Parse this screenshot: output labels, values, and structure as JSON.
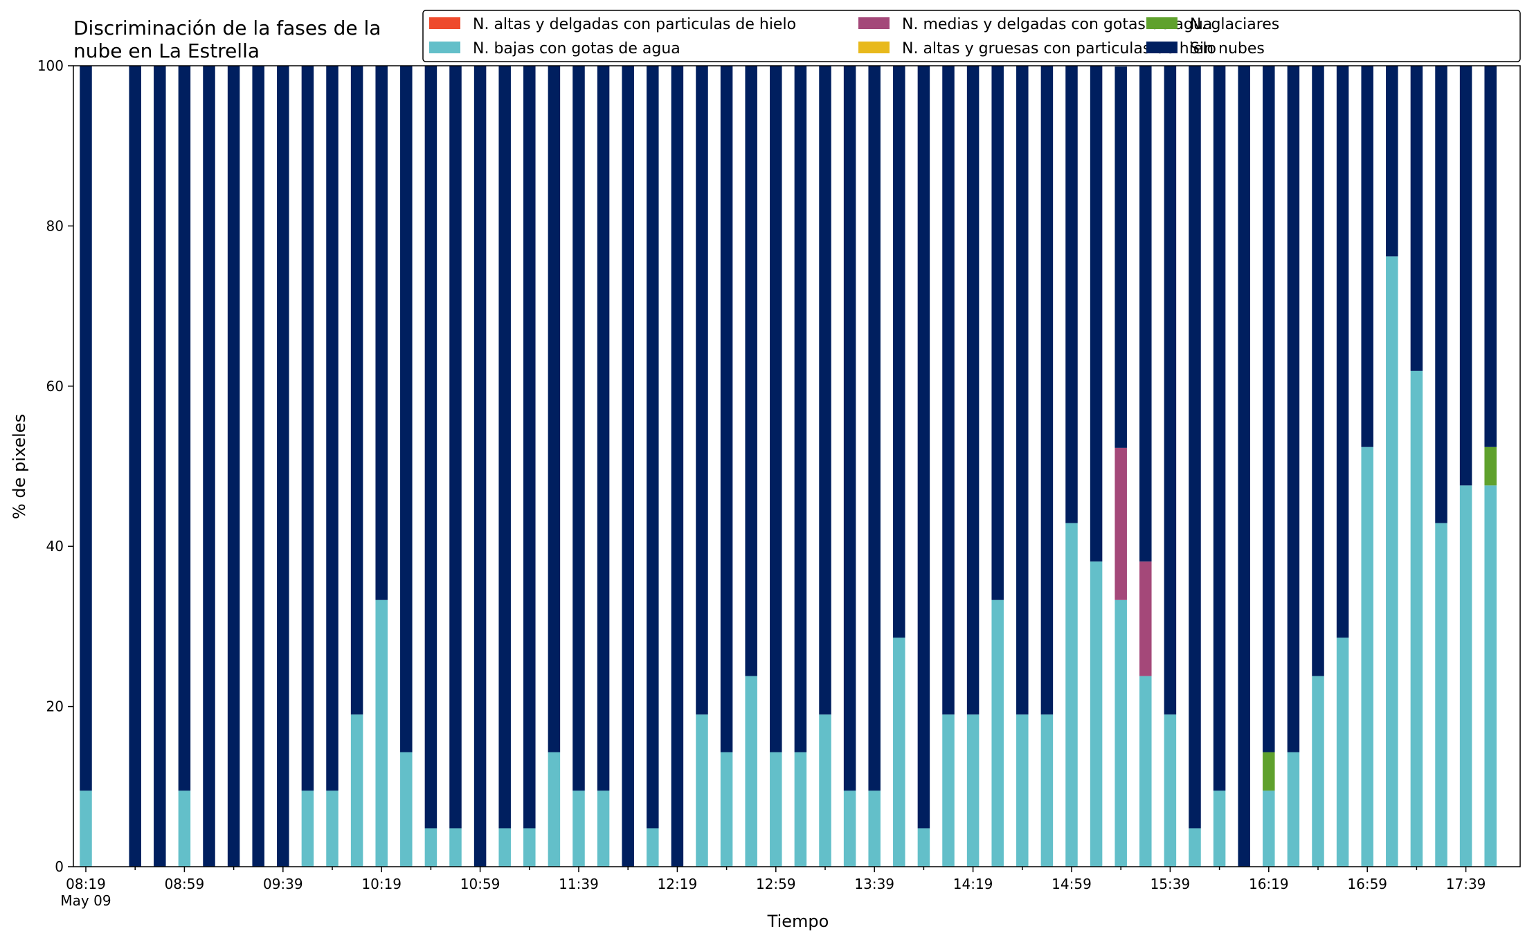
{
  "chart_data": {
    "type": "bar",
    "stacked": true,
    "title": "Discriminación de la fases de la\nnube en La Estrella",
    "xlabel": "Tiempo",
    "ylabel": "% de pixeles",
    "ylim": [
      0,
      100
    ],
    "yticks": [
      0,
      20,
      40,
      60,
      80,
      100
    ],
    "grid": false,
    "legend_position": "top-right",
    "x_date_label": "May 09",
    "xtick_labels": [
      "08:19",
      "08:59",
      "09:39",
      "10:19",
      "10:59",
      "11:39",
      "12:19",
      "12:59",
      "13:39",
      "14:19",
      "14:59",
      "15:39",
      "16:19",
      "16:59",
      "17:39"
    ],
    "categories": [
      "08:19",
      "08:29",
      "08:39",
      "08:49",
      "08:59",
      "09:09",
      "09:19",
      "09:29",
      "09:39",
      "09:49",
      "09:59",
      "10:09",
      "10:19",
      "10:29",
      "10:39",
      "10:49",
      "10:59",
      "11:09",
      "11:19",
      "11:29",
      "11:39",
      "11:49",
      "11:59",
      "12:09",
      "12:19",
      "12:29",
      "12:39",
      "12:49",
      "12:59",
      "13:09",
      "13:19",
      "13:29",
      "13:39",
      "13:49",
      "13:59",
      "14:09",
      "14:19",
      "14:29",
      "14:39",
      "14:49",
      "14:59",
      "15:09",
      "15:19",
      "15:29",
      "15:39",
      "15:49",
      "15:59",
      "16:09",
      "16:19",
      "16:29",
      "16:39",
      "16:49",
      "16:59",
      "17:09",
      "17:19",
      "17:29",
      "17:39",
      "17:49"
    ],
    "present": [
      1,
      0,
      1,
      1,
      1,
      1,
      1,
      1,
      1,
      1,
      1,
      1,
      1,
      1,
      1,
      1,
      1,
      1,
      1,
      1,
      1,
      1,
      1,
      1,
      1,
      1,
      1,
      1,
      1,
      1,
      1,
      1,
      1,
      1,
      1,
      1,
      1,
      1,
      1,
      1,
      1,
      1,
      1,
      1,
      1,
      1,
      1,
      1,
      1,
      1,
      1,
      1,
      1,
      1,
      1,
      1,
      1,
      1
    ],
    "series": [
      {
        "name": "N. altas y delgadas con particulas de hielo",
        "color": "#ee4a2c",
        "values": [
          0,
          0,
          0,
          0,
          0,
          0,
          0,
          0,
          0,
          0,
          0,
          0,
          0,
          0,
          0,
          0,
          0,
          0,
          0,
          0,
          0,
          0,
          0,
          0,
          0,
          0,
          0,
          0,
          0,
          0,
          0,
          0,
          0,
          0,
          0,
          0,
          0,
          0,
          0,
          0,
          0,
          0,
          0,
          0,
          0,
          0,
          0,
          0,
          0,
          0,
          0,
          0,
          0,
          0,
          0,
          0,
          0,
          0
        ]
      },
      {
        "name": "N. altas y gruesas con particulas de hielo",
        "color": "#e8b91c",
        "values": [
          0,
          0,
          0,
          0,
          0,
          0,
          0,
          0,
          0,
          0,
          0,
          0,
          0,
          0,
          0,
          0,
          0,
          0,
          0,
          0,
          0,
          0,
          0,
          0,
          0,
          0,
          0,
          0,
          0,
          0,
          0,
          0,
          0,
          0,
          0,
          0,
          0,
          0,
          0,
          0,
          0,
          0,
          0,
          0,
          0,
          0,
          0,
          0,
          0,
          0,
          0,
          0,
          0,
          0,
          0,
          0,
          0,
          0
        ]
      },
      {
        "name": "N. bajas con gotas de agua",
        "color": "#63bfc9",
        "values": [
          9.5,
          0,
          0,
          0,
          9.5,
          0,
          0,
          0,
          0,
          9.5,
          9.5,
          19,
          33.3,
          14.3,
          4.8,
          4.8,
          0,
          4.8,
          4.8,
          14.3,
          9.5,
          9.5,
          0,
          4.8,
          0,
          19,
          14.3,
          23.8,
          14.3,
          14.3,
          19,
          9.5,
          9.5,
          28.6,
          4.8,
          19,
          19,
          33.3,
          19,
          19,
          42.9,
          38.1,
          33.3,
          23.8,
          19,
          4.8,
          9.5,
          0,
          9.5,
          14.3,
          23.8,
          28.6,
          52.4,
          76.2,
          61.9,
          42.9,
          47.6,
          47.6
        ]
      },
      {
        "name": "N. glaciares",
        "color": "#5fa12d",
        "values": [
          0,
          0,
          0,
          0,
          0,
          0,
          0,
          0,
          0,
          0,
          0,
          0,
          0,
          0,
          0,
          0,
          0,
          0,
          0,
          0,
          0,
          0,
          0,
          0,
          0,
          0,
          0,
          0,
          0,
          0,
          0,
          0,
          0,
          0,
          0,
          0,
          0,
          0,
          0,
          0,
          0,
          0,
          0,
          0,
          0,
          0,
          0,
          0,
          4.8,
          0,
          0,
          0,
          0,
          0,
          0,
          0,
          0,
          4.8
        ]
      },
      {
        "name": "N. medias y delgadas con gotas de agua",
        "color": "#a44879",
        "values": [
          0,
          0,
          0,
          0,
          0,
          0,
          0,
          0,
          0,
          0,
          0,
          0,
          0,
          0,
          0,
          0,
          0,
          0,
          0,
          0,
          0,
          0,
          0,
          0,
          0,
          0,
          0,
          0,
          0,
          0,
          0,
          0,
          0,
          0,
          0,
          0,
          0,
          0,
          0,
          0,
          0,
          0,
          19,
          14.3,
          0,
          0,
          0,
          0,
          0,
          0,
          0,
          0,
          0,
          0,
          0,
          0,
          0,
          0
        ]
      },
      {
        "name": "Sin nubes",
        "color": "#001f5f",
        "values": [
          90.5,
          0,
          100,
          100,
          90.5,
          100,
          100,
          100,
          100,
          90.5,
          90.5,
          81,
          66.7,
          85.7,
          95.2,
          95.2,
          100,
          95.2,
          95.2,
          85.7,
          90.5,
          90.5,
          100,
          95.2,
          100,
          81,
          85.7,
          76.2,
          85.7,
          85.7,
          81,
          90.5,
          90.5,
          71.4,
          95.2,
          81,
          81,
          66.7,
          81,
          81,
          57.1,
          61.9,
          47.6,
          61.9,
          81,
          95.2,
          90.5,
          100,
          85.7,
          85.7,
          76.2,
          71.4,
          47.6,
          23.8,
          38.1,
          57.1,
          52.4,
          47.6
        ]
      }
    ],
    "legend_order": [
      0,
      2,
      4,
      1,
      3,
      5
    ]
  }
}
